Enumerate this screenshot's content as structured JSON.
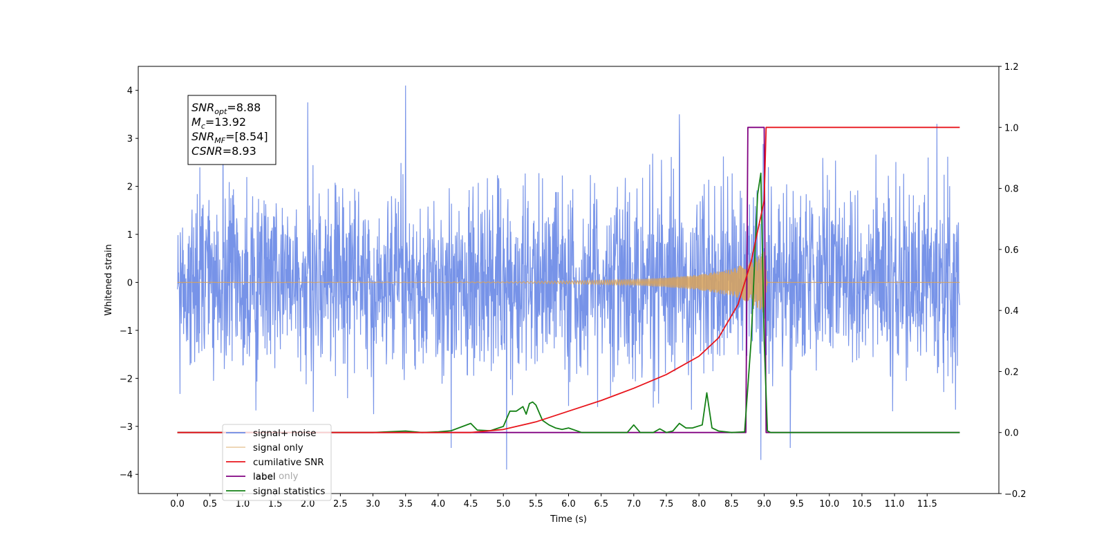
{
  "chart_data": {
    "type": "line",
    "xlabel": "Time (s)",
    "ylabel": "Whitened strain",
    "xlim": [
      -0.6,
      12.6
    ],
    "ylim": [
      -4.4,
      4.5
    ],
    "y2lim": [
      -0.2,
      1.2
    ],
    "xticks": [
      "0.0",
      "0.5",
      "1.0",
      "1.5",
      "2.0",
      "2.5",
      "3.0",
      "3.5",
      "4.0",
      "4.5",
      "5.0",
      "5.5",
      "6.0",
      "6.5",
      "7.0",
      "7.5",
      "8.0",
      "8.5",
      "9.0",
      "9.5",
      "10.0",
      "10.5",
      "11.0",
      "11.5"
    ],
    "xtick_values": [
      0,
      0.5,
      1,
      1.5,
      2,
      2.5,
      3,
      3.5,
      4,
      4.5,
      5,
      5.5,
      6,
      6.5,
      7,
      7.5,
      8,
      8.5,
      9,
      9.5,
      10,
      10.5,
      11,
      11.5
    ],
    "yticks": [
      "4",
      "3",
      "2",
      "1",
      "0",
      "−1",
      "−2",
      "−3",
      "−4"
    ],
    "ytick_values": [
      4,
      3,
      2,
      1,
      0,
      -1,
      -2,
      -3,
      -4
    ],
    "y2ticks": [
      "1.2",
      "1.0",
      "0.8",
      "0.6",
      "0.4",
      "0.2",
      "0.0",
      "−0.2"
    ],
    "y2tick_values": [
      1.2,
      1.0,
      0.8,
      0.6,
      0.4,
      0.2,
      0.0,
      -0.2
    ],
    "grid": false,
    "legend_placement": "lower-left",
    "annotation": {
      "lines": [
        {
          "sym": "SNR",
          "sub": "opt",
          "val": "=8.88"
        },
        {
          "sym": "M",
          "sub": "c",
          "val": "=13.92"
        },
        {
          "sym": "SNR",
          "sub": "MF",
          "val": "=[8.54]"
        },
        {
          "sym": "CSNR",
          "sub": "",
          "val": "=8.93"
        }
      ]
    },
    "series": [
      {
        "name": "signal+ noise",
        "axis": "left",
        "color": "#6b8ae6",
        "description": "dense noisy strain, amplitude approx ±2.5 with spikes up to 4.1 and down to -3.9",
        "x_range": [
          0,
          12
        ],
        "spikes": [
          [
            3.5,
            4.1
          ],
          [
            2.0,
            3.75
          ],
          [
            5.05,
            -3.9
          ],
          [
            8.95,
            -3.7
          ],
          [
            4.2,
            -3.45
          ],
          [
            9.4,
            -3.45
          ],
          [
            7.7,
            3.5
          ],
          [
            11.65,
            3.3
          ],
          [
            0.7,
            3.3
          ]
        ]
      },
      {
        "name": "signal only",
        "axis": "left",
        "color": "#d9a35a",
        "description": "chirp with growing amplitude, peak ~±0.65 near t=9.0, then zero",
        "x": [
          0,
          5.0,
          6.0,
          7.0,
          7.5,
          8.0,
          8.5,
          8.8,
          9.0,
          9.05,
          12.0
        ],
        "envelope": [
          0.0,
          0.01,
          0.03,
          0.06,
          0.1,
          0.16,
          0.28,
          0.45,
          0.65,
          0.0,
          0.0
        ]
      },
      {
        "name": "cumilative SNR",
        "axis": "right",
        "color": "#e8141b",
        "x": [
          0,
          4.5,
          5.0,
          5.5,
          6.0,
          6.5,
          7.0,
          7.5,
          8.0,
          8.3,
          8.6,
          8.8,
          9.0,
          9.03,
          12.0
        ],
        "values": [
          0.0,
          0.0,
          0.01,
          0.035,
          0.07,
          0.105,
          0.145,
          0.19,
          0.25,
          0.31,
          0.42,
          0.56,
          0.76,
          1.0,
          1.0
        ]
      },
      {
        "name": "label",
        "axis": "right",
        "color": "#800080",
        "x": [
          0,
          8.72,
          8.75,
          9.0,
          9.03,
          12.0
        ],
        "values": [
          0.0,
          0.0,
          1.0,
          1.0,
          0.0,
          0.0
        ]
      },
      {
        "name": "label only",
        "axis": "right",
        "color": "#800080",
        "hidden": true
      },
      {
        "name": "signal statistics",
        "axis": "right",
        "color": "#138014",
        "x": [
          0,
          3.0,
          3.5,
          3.75,
          4.0,
          4.2,
          4.5,
          4.6,
          4.8,
          5.0,
          5.1,
          5.2,
          5.3,
          5.35,
          5.4,
          5.45,
          5.5,
          5.6,
          5.7,
          5.8,
          5.9,
          6.0,
          6.2,
          6.5,
          6.9,
          7.0,
          7.1,
          7.3,
          7.4,
          7.5,
          7.6,
          7.7,
          7.8,
          7.9,
          8.05,
          8.12,
          8.2,
          8.3,
          8.5,
          8.7,
          8.8,
          8.9,
          8.95,
          9.0,
          9.05,
          9.1,
          12.0
        ],
        "values": [
          0.0,
          0.0,
          0.005,
          0.0,
          0.002,
          0.006,
          0.03,
          0.008,
          0.006,
          0.02,
          0.07,
          0.07,
          0.085,
          0.06,
          0.095,
          0.1,
          0.09,
          0.04,
          0.025,
          0.015,
          0.01,
          0.015,
          0.0,
          0.0,
          0.0,
          0.025,
          0.0,
          0.0,
          0.012,
          0.0,
          0.005,
          0.03,
          0.015,
          0.015,
          0.025,
          0.13,
          0.015,
          0.005,
          0.0,
          0.002,
          0.3,
          0.78,
          0.85,
          0.3,
          0.005,
          0.0,
          0.0
        ]
      }
    ]
  }
}
